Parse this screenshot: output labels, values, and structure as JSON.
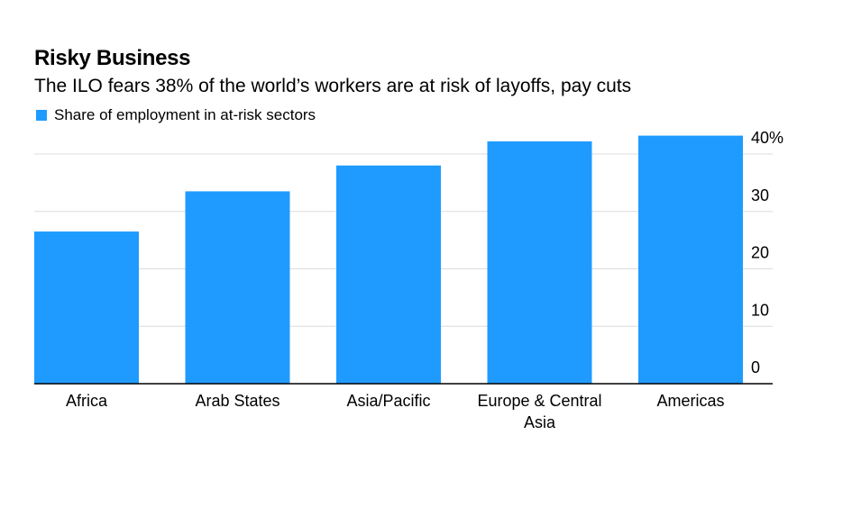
{
  "chart_data": {
    "type": "bar",
    "title": "Risky Business",
    "subtitle": "The ILO fears 38% of the world’s workers are at risk of layoffs, pay cuts",
    "categories": [
      "Africa",
      "Arab States",
      "Asia/Pacific",
      "Europe & Central Asia",
      "Americas"
    ],
    "category_lines": [
      [
        "Africa"
      ],
      [
        "Arab States"
      ],
      [
        "Asia/Pacific"
      ],
      [
        "Europe & Central",
        "Asia"
      ],
      [
        "Americas"
      ]
    ],
    "series": [
      {
        "name": "Share of employment in at-risk sectors",
        "values": [
          26.5,
          33.5,
          38.0,
          42.2,
          43.2
        ]
      }
    ],
    "yticks": [
      {
        "value": 0,
        "label": "0"
      },
      {
        "value": 10,
        "label": "10"
      },
      {
        "value": 20,
        "label": "20"
      },
      {
        "value": 30,
        "label": "30"
      },
      {
        "value": 40,
        "label": "40%"
      }
    ],
    "ylim": [
      0,
      40
    ],
    "y_axis_side": "right",
    "grid": true,
    "legend_position": "top-left",
    "xlabel": "",
    "ylabel": ""
  },
  "colors": {
    "bar": "#1f9bff",
    "grid": "#dcdcdc",
    "axis": "#000000",
    "text": "#000000"
  }
}
